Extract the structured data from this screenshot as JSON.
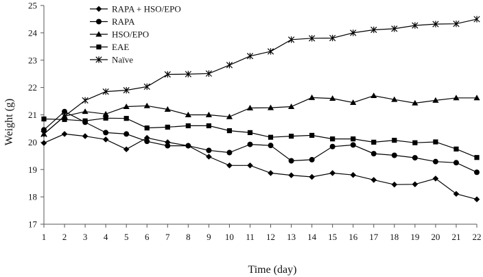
{
  "chart_data": {
    "type": "line",
    "title": "",
    "xlabel": "Time (day)",
    "ylabel": "Weight (g)",
    "xlim": [
      1,
      22
    ],
    "ylim": [
      17,
      25
    ],
    "x": [
      1,
      2,
      3,
      4,
      5,
      6,
      7,
      8,
      9,
      10,
      11,
      12,
      13,
      14,
      15,
      16,
      17,
      18,
      19,
      20,
      21,
      22
    ],
    "x_ticks": [
      "1",
      "2",
      "3",
      "4",
      "5",
      "6",
      "7",
      "8",
      "9",
      "10",
      "11",
      "12",
      "13",
      "14",
      "15",
      "16",
      "17",
      "18",
      "19",
      "20",
      "21",
      "22"
    ],
    "y_ticks": [
      "17",
      "18",
      "19",
      "20",
      "21",
      "22",
      "23",
      "24",
      "25"
    ],
    "grid": false,
    "legend_position": "top-left",
    "series": [
      {
        "name": "RAPA + HSO/EPO",
        "marker": "diamond",
        "color": "#000000",
        "values": [
          19.97,
          20.3,
          20.22,
          20.1,
          19.74,
          20.16,
          20.0,
          19.87,
          19.47,
          19.15,
          19.15,
          18.87,
          18.79,
          18.73,
          18.87,
          18.8,
          18.62,
          18.45,
          18.46,
          18.67,
          18.11,
          17.91
        ]
      },
      {
        "name": "RAPA",
        "marker": "circle",
        "color": "#000000",
        "values": [
          20.45,
          21.12,
          20.73,
          20.35,
          20.3,
          20.03,
          19.87,
          19.87,
          19.7,
          19.62,
          19.92,
          19.88,
          19.32,
          19.36,
          19.84,
          19.9,
          19.58,
          19.52,
          19.43,
          19.29,
          19.25,
          18.9
        ]
      },
      {
        "name": "HSO/EPO",
        "marker": "triangle",
        "color": "#000000",
        "values": [
          20.3,
          20.95,
          21.12,
          21.03,
          21.3,
          21.33,
          21.2,
          21.0,
          21.0,
          20.93,
          21.25,
          21.26,
          21.3,
          21.63,
          21.6,
          21.45,
          21.7,
          21.56,
          21.43,
          21.53,
          21.62,
          21.62
        ]
      },
      {
        "name": "EAE",
        "marker": "square",
        "color": "#000000",
        "values": [
          20.85,
          20.83,
          20.78,
          20.88,
          20.87,
          20.52,
          20.55,
          20.6,
          20.6,
          20.42,
          20.35,
          20.18,
          20.22,
          20.25,
          20.12,
          20.12,
          20.0,
          20.07,
          19.98,
          20.01,
          19.75,
          19.44
        ]
      },
      {
        "name": "Naïve",
        "marker": "star",
        "color": "#000000",
        "values": [
          20.3,
          20.95,
          21.53,
          21.85,
          21.9,
          22.03,
          22.48,
          22.49,
          22.51,
          22.82,
          23.15,
          23.32,
          23.75,
          23.8,
          23.81,
          24.0,
          24.11,
          24.15,
          24.27,
          24.32,
          24.33,
          24.5
        ]
      }
    ]
  }
}
